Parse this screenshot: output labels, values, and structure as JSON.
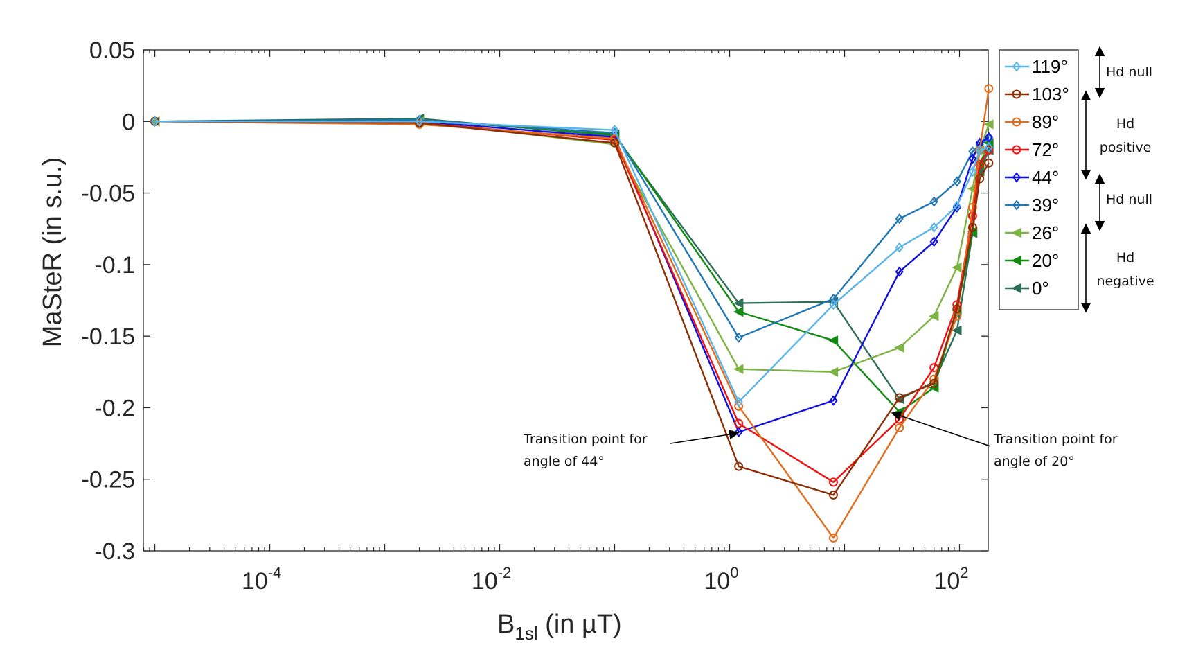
{
  "chart_data": {
    "type": "line",
    "title": "",
    "xlabel_main": "B",
    "xlabel_sub": "1sl",
    "xlabel_rest": " (in µT)",
    "ylabel": "MaSteR (in s.u.)",
    "xscale": "log",
    "xlim_exp": [
      -5.1,
      2.25
    ],
    "ylim": [
      -0.3,
      0.05
    ],
    "yticks": [
      0.05,
      0,
      -0.05,
      -0.1,
      -0.15,
      -0.2,
      -0.25,
      -0.3
    ],
    "ytick_labels": [
      "0.05",
      "0",
      "-0.05",
      "-0.1",
      "-0.15",
      "-0.2",
      "-0.25",
      "-0.3"
    ],
    "xtick_exps": [
      -4,
      -2,
      0,
      2
    ],
    "xtick_base": "10",
    "xtick_sup": [
      "-4",
      "-2",
      "0",
      "2"
    ],
    "x": [
      1e-05,
      0.002,
      0.1,
      1.2,
      8,
      30,
      60,
      95,
      130,
      150,
      180
    ],
    "series": [
      {
        "name": "119°",
        "color": "#5ab4e8",
        "marker": "diamond",
        "values": [
          0,
          0,
          -0.006,
          -0.196,
          -0.128,
          -0.088,
          -0.074,
          -0.059,
          -0.035,
          -0.02,
          -0.018
        ]
      },
      {
        "name": "103°",
        "color": "#8c2d04",
        "marker": "circle",
        "values": [
          0,
          -0.001,
          -0.015,
          -0.241,
          -0.261,
          -0.193,
          -0.183,
          -0.131,
          -0.074,
          -0.04,
          -0.029
        ]
      },
      {
        "name": "89°",
        "color": "#e06c1c",
        "marker": "circle",
        "values": [
          0,
          -0.002,
          -0.012,
          -0.199,
          -0.291,
          -0.214,
          -0.18,
          -0.136,
          -0.06,
          -0.02,
          0.023
        ]
      },
      {
        "name": "72°",
        "color": "#ee1111",
        "marker": "circle",
        "values": [
          0,
          -0.001,
          -0.013,
          -0.211,
          -0.252,
          -0.208,
          -0.172,
          -0.128,
          -0.066,
          -0.03,
          -0.02
        ]
      },
      {
        "name": "44°",
        "color": "#1010e0",
        "marker": "diamond",
        "values": [
          0,
          0,
          -0.011,
          -0.217,
          -0.195,
          -0.105,
          -0.084,
          -0.06,
          -0.026,
          -0.015,
          -0.011
        ]
      },
      {
        "name": "39°",
        "color": "#1f78b4",
        "marker": "diamond",
        "values": [
          0,
          0.001,
          -0.008,
          -0.151,
          -0.124,
          -0.068,
          -0.056,
          -0.042,
          -0.021,
          -0.016,
          -0.012
        ]
      },
      {
        "name": "26°",
        "color": "#7cb342",
        "marker": "triangle-left",
        "values": [
          0,
          0,
          -0.016,
          -0.173,
          -0.175,
          -0.158,
          -0.136,
          -0.102,
          -0.047,
          -0.02,
          -0.002
        ]
      },
      {
        "name": "20°",
        "color": "#138a13",
        "marker": "triangle-left",
        "values": [
          0,
          0.001,
          -0.009,
          -0.133,
          -0.153,
          -0.203,
          -0.186,
          -0.132,
          -0.077,
          -0.03,
          -0.015
        ]
      },
      {
        "name": "0°",
        "color": "#2c6e58",
        "marker": "triangle-left",
        "values": [
          0,
          0.002,
          -0.01,
          -0.127,
          -0.126,
          -0.194,
          -0.182,
          -0.146,
          -0.078,
          -0.035,
          -0.02
        ]
      }
    ],
    "annotations": [
      {
        "line1": "Transition point for",
        "line2": "angle of 44°"
      },
      {
        "line1": "Transition point for",
        "line2": "angle of 20°"
      }
    ],
    "side_labels": [
      {
        "lines": [
          "Hd null"
        ]
      },
      {
        "lines": [
          "Hd",
          "positive"
        ]
      },
      {
        "lines": [
          "Hd null"
        ]
      },
      {
        "lines": [
          "Hd",
          "negative"
        ]
      }
    ]
  }
}
